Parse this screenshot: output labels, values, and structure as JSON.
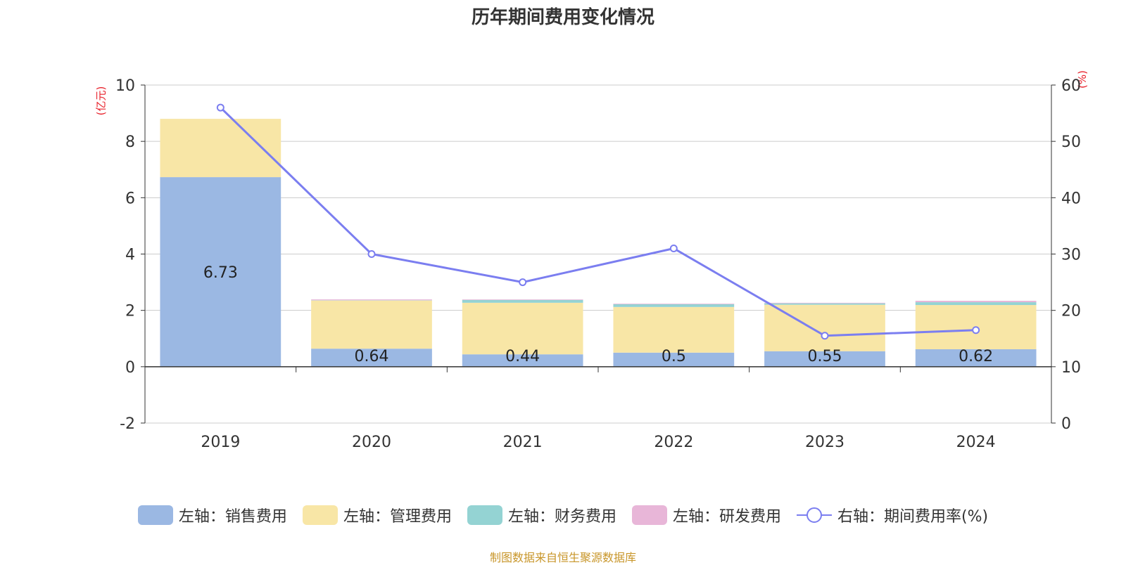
{
  "chart_data": {
    "type": "bar",
    "title": "历年期间费用变化情况",
    "y_left_label": "(亿元)",
    "y_right_label": "(%)",
    "categories": [
      "2019",
      "2020",
      "2021",
      "2022",
      "2023",
      "2024"
    ],
    "y_left_range": [
      -2,
      10
    ],
    "y_left_ticks": [
      -2,
      0,
      2,
      4,
      6,
      8,
      10
    ],
    "y_right_range": [
      0,
      60
    ],
    "y_right_ticks": [
      0,
      10,
      20,
      30,
      40,
      50,
      60
    ],
    "stacked": true,
    "grid": true,
    "legend_position": "bottom",
    "series": [
      {
        "name": "左轴：销售费用",
        "kind": "bar",
        "axis": "left",
        "color": "#9bb8e3",
        "values": [
          6.73,
          0.64,
          0.44,
          0.5,
          0.55,
          0.62
        ],
        "labels": [
          "6.73",
          "0.64",
          "0.44",
          "0.5",
          "0.55",
          "0.62"
        ]
      },
      {
        "name": "左轴：管理费用",
        "kind": "bar",
        "axis": "left",
        "color": "#f8e6a6",
        "values": [
          2.07,
          1.71,
          1.83,
          1.62,
          1.65,
          1.57
        ]
      },
      {
        "name": "左轴：财务费用",
        "kind": "bar",
        "axis": "left",
        "color": "#94d3d3",
        "values": [
          0.0,
          0.01,
          0.1,
          0.1,
          0.05,
          0.1
        ]
      },
      {
        "name": "左轴：研发费用",
        "kind": "bar",
        "axis": "left",
        "color": "#e8b6d8",
        "values": [
          0.0,
          0.03,
          0.02,
          0.02,
          0.02,
          0.05
        ]
      },
      {
        "name": "右轴：期间费用率(%)",
        "kind": "line",
        "axis": "right",
        "color": "#7b7ef0",
        "values": [
          56,
          30,
          25,
          31,
          15.5,
          16.5
        ]
      }
    ]
  },
  "source": "制图数据来自恒生聚源数据库"
}
